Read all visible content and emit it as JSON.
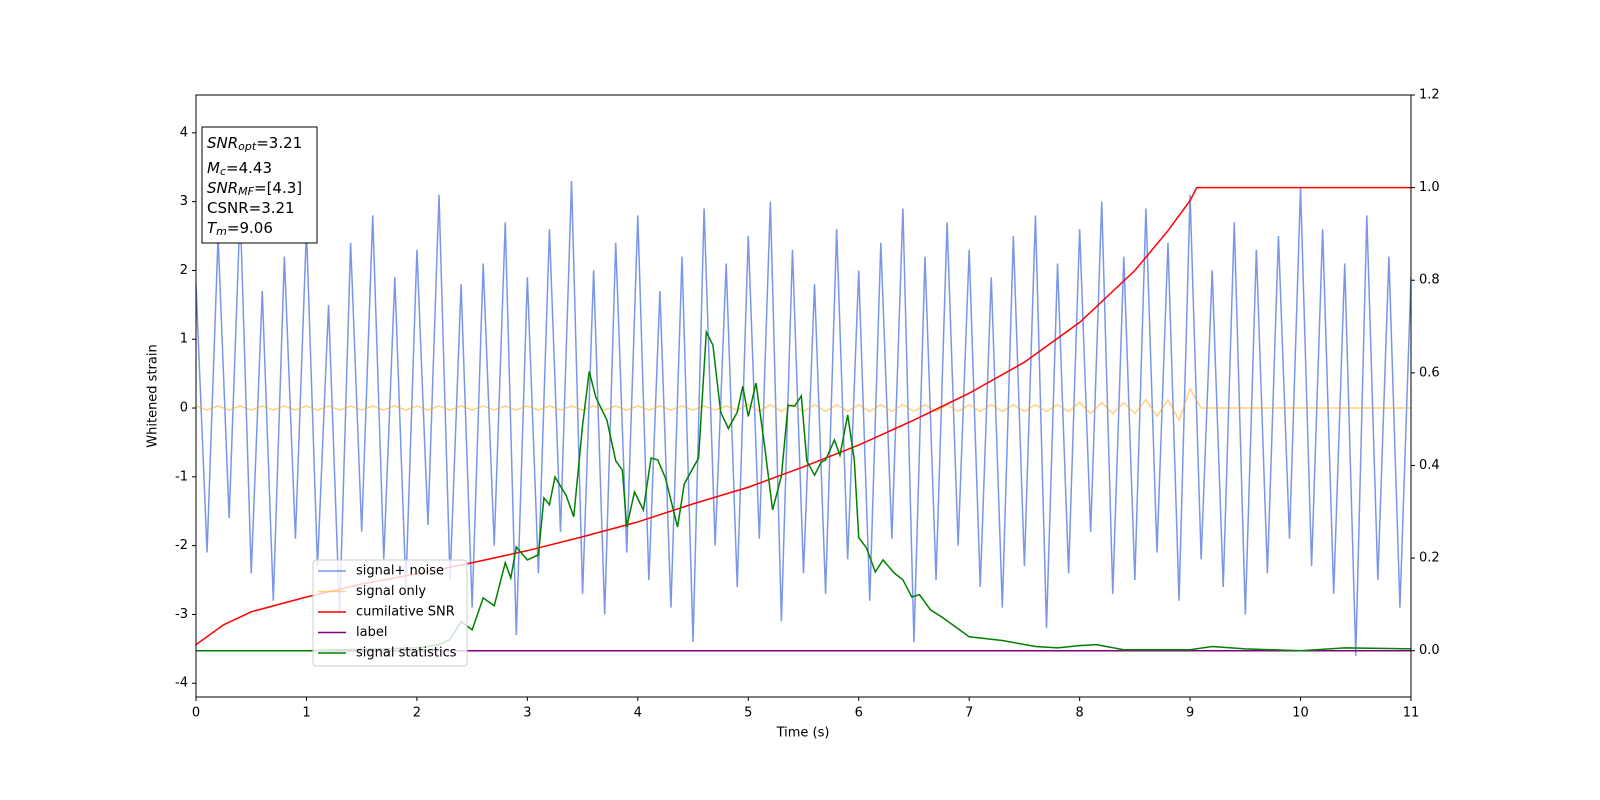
{
  "chart_data": {
    "type": "line",
    "xlabel": "Time (s)",
    "ylabel": "Whitened strain",
    "xlim": [
      0,
      11
    ],
    "xticks": [
      0,
      1,
      2,
      3,
      4,
      5,
      6,
      7,
      8,
      9,
      10,
      11
    ],
    "ylim": [
      -4.2,
      4.55
    ],
    "yticks": [
      -4,
      -3,
      -2,
      -1,
      0,
      1,
      2,
      3,
      4
    ],
    "y2lim": [
      -0.1,
      1.2
    ],
    "y2ticks": [
      {
        "value": 0,
        "label": "0.0"
      },
      {
        "value": 0.2,
        "label": "0.2"
      },
      {
        "value": 0.4,
        "label": "0.4"
      },
      {
        "value": 0.6,
        "label": "0.6"
      },
      {
        "value": 0.8,
        "label": "0.8"
      },
      {
        "value": 1.0,
        "label": "1.0"
      },
      {
        "value": 1.2,
        "label": "1.2"
      }
    ],
    "annotations": [
      {
        "main": "SNR",
        "sub": "opt",
        "rest": "=3.21"
      },
      {
        "main": "M",
        "sub": "c",
        "rest": "=4.43"
      },
      {
        "main": "SNR",
        "sub": "MF",
        "rest": "=[4.3]"
      },
      {
        "main": "",
        "sub": "",
        "rest": "CSNR=3.21"
      },
      {
        "main": "T",
        "sub": "m",
        "rest": "=9.06"
      }
    ],
    "series": [
      {
        "name": "signal+ noise",
        "color": "#4169e1",
        "alpha": 0.7,
        "x": [
          0,
          0.1,
          0.2,
          0.3,
          0.4,
          0.5,
          0.6,
          0.7,
          0.8,
          0.9,
          1,
          1.1,
          1.2,
          1.3,
          1.4,
          1.5,
          1.6,
          1.7,
          1.8,
          1.9,
          2,
          2.1,
          2.2,
          2.3,
          2.4,
          2.5,
          2.6,
          2.7,
          2.8,
          2.9,
          3,
          3.1,
          3.2,
          3.3,
          3.4,
          3.5,
          3.6,
          3.7,
          3.8,
          3.9,
          4,
          4.1,
          4.2,
          4.3,
          4.4,
          4.5,
          4.6,
          4.7,
          4.8,
          4.9,
          5,
          5.1,
          5.2,
          5.3,
          5.4,
          5.5,
          5.6,
          5.7,
          5.8,
          5.9,
          6,
          6.1,
          6.2,
          6.3,
          6.4,
          6.5,
          6.6,
          6.7,
          6.8,
          6.9,
          7,
          7.1,
          7.2,
          7.3,
          7.4,
          7.5,
          7.6,
          7.7,
          7.8,
          7.9,
          8,
          8.1,
          8.2,
          8.3,
          8.4,
          8.5,
          8.6,
          8.7,
          8.8,
          8.9,
          9,
          9.1,
          9.2,
          9.3,
          9.4,
          9.5,
          9.6,
          9.7,
          9.8,
          9.9,
          10,
          10.1,
          10.2,
          10.3,
          10.4,
          10.5,
          10.6,
          10.7,
          10.8,
          10.9,
          11
        ],
        "values": [
          1.8,
          -2.1,
          2.5,
          -1.6,
          2.9,
          -2.4,
          1.7,
          -2.8,
          2.2,
          -1.9,
          2.6,
          -2.3,
          1.5,
          -3.0,
          2.4,
          -1.8,
          2.8,
          -2.2,
          1.9,
          -2.6,
          2.3,
          -1.7,
          3.1,
          -2.5,
          1.8,
          -2.9,
          2.1,
          -2.0,
          2.7,
          -3.3,
          1.9,
          -2.4,
          2.6,
          -1.8,
          3.3,
          -2.7,
          2.0,
          -3.0,
          2.4,
          -2.1,
          2.8,
          -2.5,
          1.7,
          -2.9,
          2.2,
          -3.4,
          2.9,
          -2.0,
          2.1,
          -2.6,
          2.5,
          -1.9,
          3.0,
          -3.1,
          2.3,
          -2.4,
          1.8,
          -2.7,
          2.6,
          -2.2,
          2.0,
          -2.8,
          2.4,
          -1.9,
          2.9,
          -3.4,
          2.2,
          -2.5,
          2.7,
          -2.0,
          2.3,
          -2.6,
          1.9,
          -2.9,
          2.5,
          -2.3,
          2.8,
          -3.2,
          2.1,
          -2.4,
          2.6,
          -1.8,
          3.0,
          -2.7,
          2.2,
          -2.5,
          2.9,
          -2.1,
          2.4,
          -2.8,
          3.1,
          -2.2,
          2.0,
          -2.6,
          2.7,
          -3.0,
          2.3,
          -2.4,
          2.5,
          -1.9,
          3.2,
          -2.3,
          2.6,
          -2.7,
          2.1,
          -3.6,
          2.8,
          -2.5,
          2.2,
          -2.9,
          1.9
        ]
      },
      {
        "name": "signal only",
        "color": "#ffa500",
        "alpha": 0.5,
        "x": [
          0,
          0.1,
          0.2,
          0.3,
          0.4,
          0.5,
          0.6,
          0.7,
          0.8,
          0.9,
          1,
          1.1,
          1.2,
          1.3,
          1.4,
          1.5,
          1.6,
          1.7,
          1.8,
          1.9,
          2,
          2.1,
          2.2,
          2.3,
          2.4,
          2.5,
          2.6,
          2.7,
          2.8,
          2.9,
          3,
          3.1,
          3.2,
          3.3,
          3.4,
          3.5,
          3.6,
          3.7,
          3.8,
          3.9,
          4,
          4.1,
          4.2,
          4.3,
          4.4,
          4.5,
          4.6,
          4.7,
          4.8,
          4.9,
          5,
          5.1,
          5.2,
          5.3,
          5.4,
          5.5,
          5.6,
          5.7,
          5.8,
          5.9,
          6,
          6.1,
          6.2,
          6.3,
          6.4,
          6.5,
          6.6,
          6.7,
          6.8,
          6.9,
          7,
          7.1,
          7.2,
          7.3,
          7.4,
          7.5,
          7.6,
          7.7,
          7.8,
          7.9,
          8,
          8.1,
          8.2,
          8.3,
          8.4,
          8.5,
          8.6,
          8.7,
          8.8,
          8.9,
          9,
          9.1,
          9.2,
          9.3,
          9.4,
          9.5,
          9.6,
          9.7,
          9.8,
          9.9,
          10,
          10.1,
          10.2,
          10.3,
          10.4,
          10.5,
          10.6,
          10.7,
          10.8,
          10.9,
          11
        ],
        "values": [
          0.03,
          -0.03,
          0.03,
          -0.03,
          0.03,
          -0.03,
          0.03,
          -0.03,
          0.03,
          -0.03,
          0.03,
          -0.03,
          0.03,
          -0.03,
          0.03,
          -0.03,
          0.03,
          -0.03,
          0.03,
          -0.03,
          0.03,
          -0.03,
          0.03,
          -0.03,
          0.03,
          -0.03,
          0.03,
          -0.03,
          0.03,
          -0.03,
          0.03,
          -0.03,
          0.03,
          -0.03,
          0.03,
          -0.03,
          0.03,
          -0.03,
          0.03,
          -0.03,
          0.03,
          -0.03,
          0.03,
          -0.03,
          0.03,
          -0.03,
          0.03,
          -0.03,
          0.03,
          -0.03,
          0.05,
          -0.05,
          0.05,
          -0.05,
          0.05,
          -0.05,
          0.05,
          -0.05,
          0.05,
          -0.05,
          0.05,
          -0.05,
          0.05,
          -0.05,
          0.05,
          -0.05,
          0.05,
          -0.05,
          0.05,
          -0.05,
          0.05,
          -0.05,
          0.05,
          -0.05,
          0.05,
          -0.05,
          0.05,
          -0.05,
          0.05,
          -0.05,
          0.08,
          -0.08,
          0.08,
          -0.08,
          0.08,
          -0.08,
          0.12,
          -0.12,
          0.12,
          -0.18,
          0.28,
          0,
          0,
          0,
          0,
          0,
          0,
          0,
          0,
          0,
          0,
          0,
          0,
          0,
          0,
          0,
          0,
          0,
          0,
          0,
          0
        ]
      },
      {
        "name": "cumilative SNR",
        "color": "#ff0000",
        "alpha": 1,
        "axis": "y2",
        "x": [
          0,
          0.25,
          0.5,
          1,
          1.5,
          2,
          2.5,
          3,
          3.5,
          4,
          4.5,
          5,
          5.5,
          6,
          6.5,
          7,
          7.5,
          8,
          8.5,
          8.8,
          9,
          9.06,
          11
        ],
        "values": [
          0.013,
          0.056,
          0.084,
          0.116,
          0.144,
          0.166,
          0.19,
          0.216,
          0.246,
          0.278,
          0.317,
          0.353,
          0.397,
          0.444,
          0.498,
          0.556,
          0.623,
          0.709,
          0.821,
          0.907,
          0.972,
          1.0,
          1.0
        ]
      },
      {
        "name": "label",
        "color": "#800080",
        "alpha": 1,
        "axis": "y2",
        "x": [
          0,
          11
        ],
        "values": [
          0,
          0
        ]
      },
      {
        "name": "signal statistics",
        "color": "#008000",
        "alpha": 1,
        "axis": "y2",
        "x": [
          0,
          1,
          2,
          2.2,
          2.3,
          2.4,
          2.5,
          2.6,
          2.7,
          2.8,
          2.85,
          2.9,
          3.0,
          3.1,
          3.15,
          3.2,
          3.25,
          3.35,
          3.42,
          3.5,
          3.56,
          3.62,
          3.72,
          3.8,
          3.86,
          3.9,
          3.97,
          4.05,
          4.12,
          4.18,
          4.25,
          4.36,
          4.42,
          4.55,
          4.62,
          4.68,
          4.75,
          4.82,
          4.9,
          4.95,
          5.0,
          5.07,
          5.15,
          5.22,
          5.3,
          5.36,
          5.42,
          5.48,
          5.53,
          5.6,
          5.66,
          5.7,
          5.78,
          5.83,
          5.9,
          5.96,
          6.0,
          6.07,
          6.15,
          6.22,
          6.32,
          6.4,
          6.48,
          6.55,
          6.65,
          6.75,
          6.85,
          7.0,
          7.3,
          7.6,
          7.8,
          8.0,
          8.15,
          8.4,
          9.0,
          9.2,
          9.5,
          10.0,
          10.4,
          11
        ],
        "values": [
          0,
          0,
          0.006,
          0.013,
          0.024,
          0.063,
          0.045,
          0.114,
          0.097,
          0.19,
          0.157,
          0.224,
          0.196,
          0.207,
          0.33,
          0.315,
          0.375,
          0.336,
          0.289,
          0.487,
          0.603,
          0.547,
          0.498,
          0.41,
          0.39,
          0.267,
          0.343,
          0.304,
          0.416,
          0.412,
          0.373,
          0.267,
          0.36,
          0.416,
          0.688,
          0.66,
          0.515,
          0.48,
          0.515,
          0.571,
          0.506,
          0.578,
          0.438,
          0.304,
          0.377,
          0.53,
          0.528,
          0.55,
          0.41,
          0.379,
          0.407,
          0.412,
          0.455,
          0.422,
          0.509,
          0.412,
          0.244,
          0.222,
          0.17,
          0.196,
          0.168,
          0.153,
          0.116,
          0.121,
          0.088,
          0.073,
          0.056,
          0.03,
          0.022,
          0.009,
          0.006,
          0.011,
          0.013,
          0.002,
          0.002,
          0.009,
          0.004,
          0,
          0.006,
          0.004
        ]
      }
    ]
  }
}
